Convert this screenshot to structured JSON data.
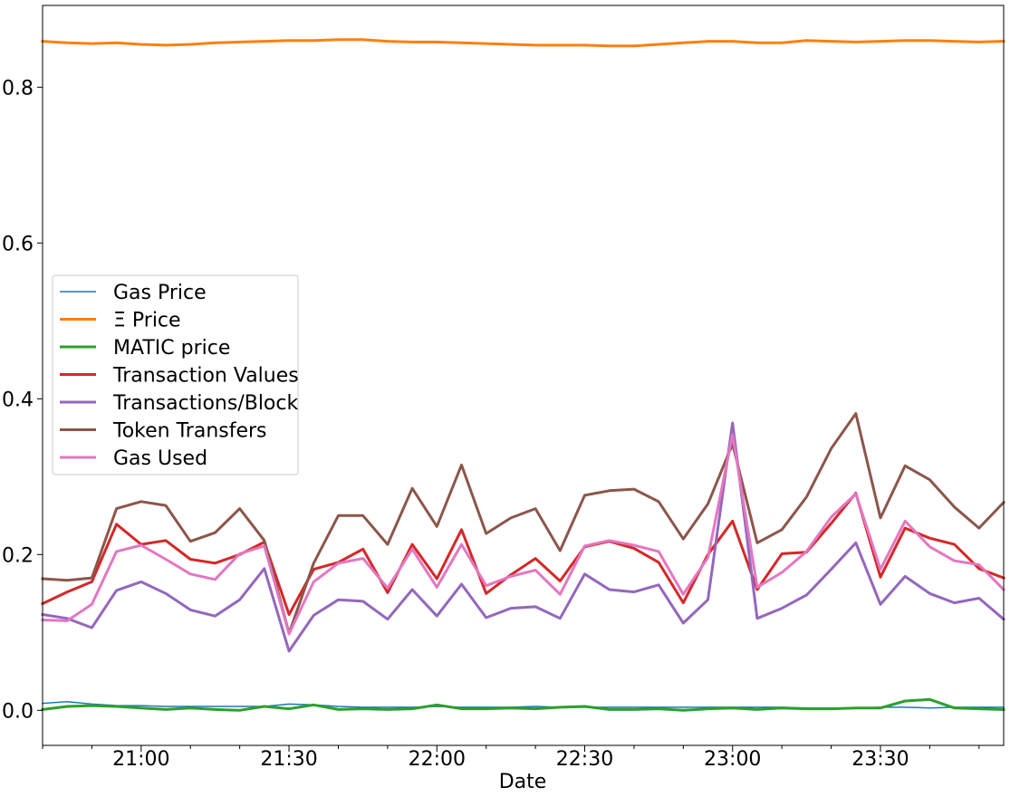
{
  "chart_data": {
    "type": "line",
    "xlabel": "Date",
    "ylabel": "",
    "xlim": [
      "20:40",
      "23:55"
    ],
    "ylim": [
      -0.045,
      0.905
    ],
    "y_ticks": [
      0.0,
      0.2,
      0.4,
      0.6,
      0.8
    ],
    "y_tick_labels": [
      "0.0",
      "0.2",
      "0.4",
      "0.6",
      "0.8"
    ],
    "x_ticks": [
      "21:00",
      "21:30",
      "22:00",
      "22:30",
      "23:00",
      "23:30"
    ],
    "x_tick_labels": [
      "21:00",
      "21:30",
      "22:00",
      "22:30",
      "23:00",
      "23:30"
    ],
    "grid": false,
    "legend_position": "center-left",
    "x": [
      "20:40",
      "20:45",
      "20:50",
      "20:55",
      "21:00",
      "21:05",
      "21:10",
      "21:15",
      "21:20",
      "21:25",
      "21:30",
      "21:35",
      "21:40",
      "21:45",
      "21:50",
      "21:55",
      "22:00",
      "22:05",
      "22:10",
      "22:15",
      "22:20",
      "22:25",
      "22:30",
      "22:35",
      "22:40",
      "22:45",
      "22:50",
      "22:55",
      "23:00",
      "23:05",
      "23:10",
      "23:15",
      "23:20",
      "23:25",
      "23:30",
      "23:35",
      "23:40",
      "23:45",
      "23:50",
      "23:55"
    ],
    "series": [
      {
        "name": "Gas Price",
        "color": "#1f77b4",
        "width": 1.5,
        "values": [
          0.009,
          0.011,
          0.008,
          0.006,
          0.006,
          0.005,
          0.005,
          0.005,
          0.005,
          0.005,
          0.008,
          0.007,
          0.005,
          0.004,
          0.004,
          0.004,
          0.005,
          0.004,
          0.004,
          0.004,
          0.005,
          0.004,
          0.004,
          0.004,
          0.004,
          0.004,
          0.004,
          0.004,
          0.004,
          0.004,
          0.004,
          0.003,
          0.003,
          0.003,
          0.004,
          0.004,
          0.003,
          0.004,
          0.004,
          0.004
        ]
      },
      {
        "name": "Ξ Price",
        "color": "#ff7f0e",
        "width": 3,
        "values": [
          0.859,
          0.857,
          0.856,
          0.857,
          0.855,
          0.854,
          0.855,
          0.857,
          0.858,
          0.859,
          0.86,
          0.86,
          0.861,
          0.861,
          0.859,
          0.858,
          0.858,
          0.857,
          0.856,
          0.855,
          0.854,
          0.854,
          0.854,
          0.853,
          0.853,
          0.855,
          0.857,
          0.859,
          0.859,
          0.857,
          0.857,
          0.86,
          0.859,
          0.858,
          0.859,
          0.86,
          0.86,
          0.859,
          0.858,
          0.859
        ]
      },
      {
        "name": "MATIC price",
        "color": "#2ca02c",
        "width": 3,
        "values": [
          0.001,
          0.005,
          0.006,
          0.005,
          0.003,
          0.001,
          0.003,
          0.001,
          0.0,
          0.005,
          0.002,
          0.007,
          0.001,
          0.002,
          0.001,
          0.002,
          0.007,
          0.002,
          0.002,
          0.003,
          0.002,
          0.004,
          0.005,
          0.001,
          0.001,
          0.002,
          0.0,
          0.002,
          0.003,
          0.001,
          0.003,
          0.002,
          0.002,
          0.003,
          0.003,
          0.012,
          0.014,
          0.003,
          0.002,
          0.001
        ]
      },
      {
        "name": "Transaction Values",
        "color": "#d62728",
        "width": 3,
        "values": [
          0.137,
          0.152,
          0.165,
          0.239,
          0.213,
          0.218,
          0.194,
          0.189,
          0.2,
          0.216,
          0.123,
          0.181,
          0.19,
          0.207,
          0.151,
          0.213,
          0.169,
          0.232,
          0.15,
          0.174,
          0.195,
          0.166,
          0.21,
          0.217,
          0.208,
          0.19,
          0.138,
          0.2,
          0.243,
          0.155,
          0.201,
          0.203,
          0.24,
          0.279,
          0.171,
          0.234,
          0.221,
          0.213,
          0.182,
          0.17
        ]
      },
      {
        "name": "Transactions/Block",
        "color": "#9467bd",
        "width": 3,
        "values": [
          0.123,
          0.118,
          0.106,
          0.154,
          0.165,
          0.15,
          0.129,
          0.121,
          0.142,
          0.182,
          0.076,
          0.122,
          0.142,
          0.14,
          0.117,
          0.155,
          0.121,
          0.162,
          0.119,
          0.131,
          0.133,
          0.118,
          0.175,
          0.155,
          0.152,
          0.161,
          0.112,
          0.142,
          0.369,
          0.118,
          0.131,
          0.148,
          0.181,
          0.215,
          0.136,
          0.172,
          0.15,
          0.138,
          0.144,
          0.117
        ]
      },
      {
        "name": "Token Transfers",
        "color": "#8c564b",
        "width": 3,
        "values": [
          0.169,
          0.167,
          0.17,
          0.259,
          0.268,
          0.263,
          0.217,
          0.228,
          0.259,
          0.218,
          0.099,
          0.189,
          0.25,
          0.25,
          0.213,
          0.285,
          0.236,
          0.315,
          0.227,
          0.247,
          0.259,
          0.205,
          0.276,
          0.282,
          0.284,
          0.268,
          0.22,
          0.265,
          0.342,
          0.215,
          0.232,
          0.274,
          0.336,
          0.381,
          0.247,
          0.314,
          0.296,
          0.261,
          0.234,
          0.267
        ]
      },
      {
        "name": "Gas Used",
        "color": "#e377c2",
        "width": 3,
        "values": [
          0.116,
          0.115,
          0.136,
          0.204,
          0.212,
          0.194,
          0.175,
          0.168,
          0.201,
          0.211,
          0.098,
          0.165,
          0.189,
          0.195,
          0.157,
          0.207,
          0.158,
          0.213,
          0.16,
          0.172,
          0.18,
          0.149,
          0.211,
          0.218,
          0.212,
          0.204,
          0.149,
          0.196,
          0.354,
          0.158,
          0.177,
          0.204,
          0.248,
          0.278,
          0.181,
          0.243,
          0.21,
          0.192,
          0.187,
          0.155
        ]
      }
    ]
  }
}
